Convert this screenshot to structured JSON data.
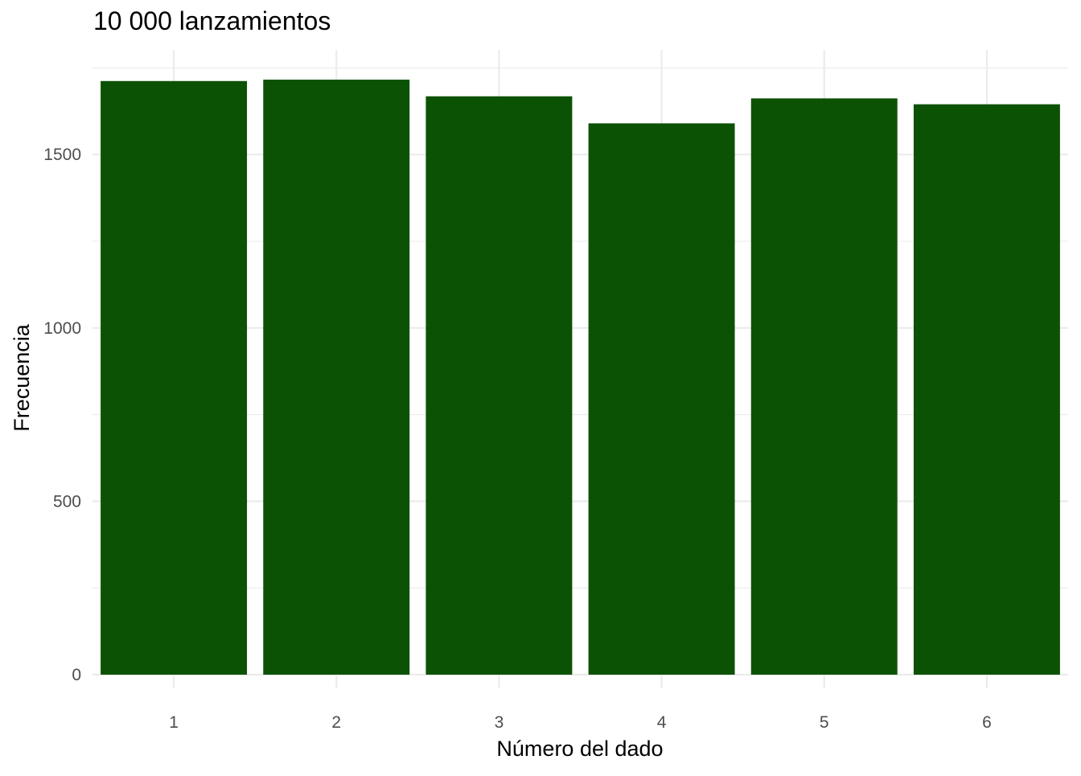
{
  "chart_data": {
    "type": "bar",
    "title": "10 000 lanzamientos",
    "xlabel": "Número del dado",
    "ylabel": "Frecuencia",
    "categories": [
      "1",
      "2",
      "3",
      "4",
      "5",
      "6"
    ],
    "values": [
      1712,
      1716,
      1668,
      1590,
      1662,
      1645
    ],
    "ylim": [
      0,
      1750
    ],
    "yticks": [
      0,
      500,
      1000,
      1500
    ],
    "yticks_minor": [
      250,
      750,
      1250
    ],
    "grid": true,
    "bar_color": "#0c5204",
    "grid_color": "#ebebeb",
    "tick_label_color": "#4d4d4d"
  }
}
